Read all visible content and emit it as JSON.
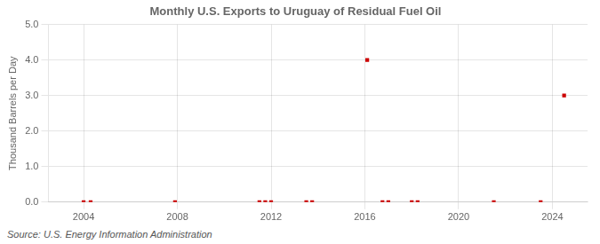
{
  "chart_data": {
    "type": "scatter",
    "title": "Monthly U.S. Exports to Uruguay of Residual Fuel Oil",
    "y_label": "Thousand Barrels per Day",
    "annotations": [
      "Source: U.S. Energy Information Administration"
    ],
    "x": [
      2004.0,
      2004.3,
      2007.9,
      2011.5,
      2011.75,
      2012.0,
      2013.5,
      2013.75,
      2016.1,
      2016.75,
      2017.0,
      2018.0,
      2018.25,
      2021.5,
      2023.5,
      2024.5
    ],
    "values": [
      0.0,
      0.0,
      0.0,
      0.0,
      0.0,
      0.0,
      0.0,
      0.0,
      4.0,
      0.0,
      0.0,
      0.0,
      0.0,
      0.0,
      0.0,
      3.0
    ],
    "color": "#cc0000",
    "marker": "square",
    "xlim": [
      2002.5,
      2025.5
    ],
    "xticks": [
      2004,
      2008,
      2012,
      2016,
      2020,
      2024
    ],
    "ylim": [
      0,
      5.0
    ],
    "yticks": [
      {
        "value": 0.0,
        "label": "0.0"
      },
      {
        "value": 1.0,
        "label": "1.0"
      },
      {
        "value": 2.0,
        "label": "2.0"
      },
      {
        "value": 3.0,
        "label": "3.0"
      },
      {
        "value": 4.0,
        "label": "4.0"
      },
      {
        "value": 5.0,
        "label": "5.0"
      }
    ],
    "grid": true
  }
}
